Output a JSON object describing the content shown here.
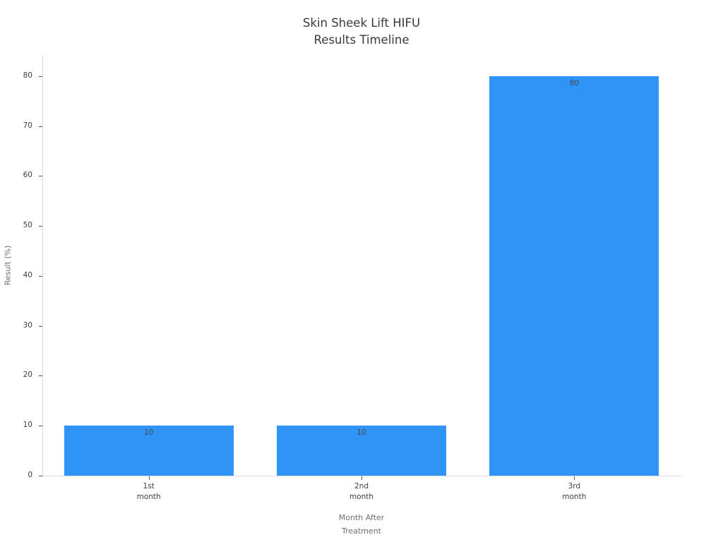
{
  "chart_data": {
    "type": "bar",
    "title": "Skin Sheek Lift HIFU Results Timeline",
    "title_lines": [
      "Skin Sheek Lift HIFU",
      "Results Timeline"
    ],
    "categories": [
      "1st month",
      "2nd month",
      "3rd month"
    ],
    "category_lines": [
      [
        "1st",
        "month"
      ],
      [
        "2nd",
        "month"
      ],
      [
        "3rd",
        "month"
      ]
    ],
    "values": [
      10,
      10,
      80
    ],
    "bar_value_labels": [
      "10",
      "10",
      "80"
    ],
    "xlabel": "Month After Treatment",
    "xlabel_lines": [
      "Month After",
      "Treatment"
    ],
    "ylabel": "Result (%)",
    "yticks": [
      0,
      10,
      20,
      30,
      40,
      50,
      60,
      70,
      80
    ],
    "ylim": [
      0,
      84.2
    ],
    "grid": false,
    "legend": false,
    "colors": {
      "bar": "#3094f7",
      "bar_label_text": "#3f4a52",
      "title_text": "#3a3a3a",
      "tick_text": "#3d3d3d",
      "axis_title_text": "#6e6e6e",
      "spine": "#d9d9d9",
      "tick_mark": "#555555",
      "background": "#ffffff"
    }
  }
}
